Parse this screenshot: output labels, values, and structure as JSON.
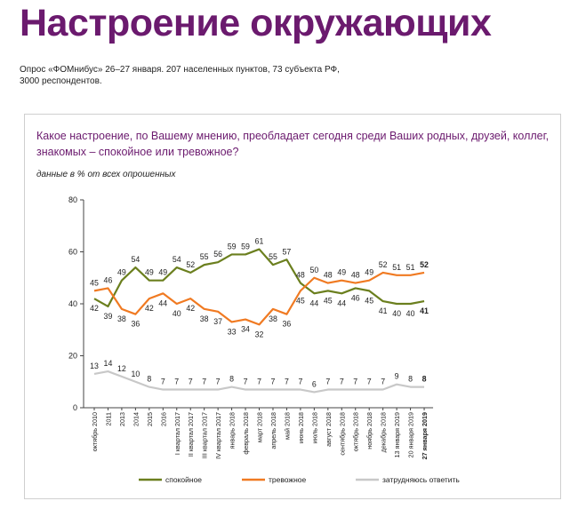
{
  "page": {
    "title": "Настроение окружающих",
    "survey_info": "Опрос «ФОМнибус» 26–27 января. 207 населенных пунктов, 73 субъекта РФ, 3000 респондентов.",
    "question": "Какое настроение, по Вашему мнению, преобладает сегодня среди Ваших родных, друзей, коллег, знакомых – спокойное или тревожное?",
    "units_note": "данные в % от всех опрошенных"
  },
  "chart_data": {
    "type": "line",
    "categories": [
      "октябрь 2010",
      "2011",
      "2013",
      "2014",
      "2015",
      "2016",
      "I квартал 2017",
      "II квартал 2017",
      "III квартал 2017",
      "IV квартал 2017",
      "январь 2018",
      "февраль 2018",
      "март 2018",
      "апрель 2018",
      "май 2018",
      "июнь 2018",
      "июль 2018",
      "август 2018",
      "сентябрь 2018",
      "октябрь 2018",
      "ноябрь 2018",
      "декабрь 2018",
      "13 января 2019",
      "20 января 2019",
      "27 января 2019"
    ],
    "series": [
      {
        "name": "спокойное",
        "color": "#6b7f1e",
        "values": [
          42,
          39,
          49,
          54,
          49,
          49,
          54,
          52,
          55,
          56,
          59,
          59,
          61,
          55,
          57,
          48,
          44,
          45,
          44,
          46,
          45,
          41,
          40,
          40,
          41
        ]
      },
      {
        "name": "тревожное",
        "color": "#f07a22",
        "values": [
          45,
          46,
          38,
          36,
          42,
          44,
          40,
          42,
          38,
          37,
          33,
          34,
          32,
          38,
          36,
          45,
          50,
          48,
          49,
          48,
          49,
          52,
          51,
          51,
          52
        ]
      },
      {
        "name": "затрудняюсь ответить",
        "color": "#c8c8c8",
        "values": [
          13,
          14,
          12,
          10,
          8,
          7,
          7,
          7,
          7,
          7,
          8,
          7,
          7,
          7,
          7,
          7,
          6,
          7,
          7,
          7,
          7,
          7,
          9,
          8,
          8
        ]
      }
    ],
    "yticks": [
      0,
      20,
      40,
      60,
      80
    ],
    "ylim": [
      0,
      80
    ],
    "legend_position": "bottom",
    "bold_last_category": true
  }
}
